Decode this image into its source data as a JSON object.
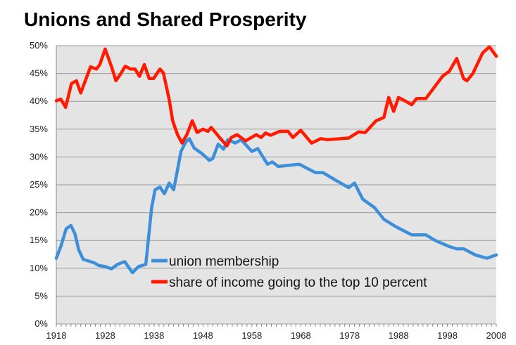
{
  "chart_data": {
    "type": "line",
    "title": "Unions and Shared Prosperity",
    "xlabel": "",
    "ylabel": "",
    "xlim": [
      1918,
      2008
    ],
    "ylim": [
      0,
      50
    ],
    "x_ticks": [
      "1918",
      "1928",
      "1938",
      "1948",
      "1958",
      "1968",
      "1978",
      "1988",
      "1998",
      "2008"
    ],
    "y_ticks": [
      "0%",
      "5%",
      "10%",
      "15%",
      "20%",
      "25%",
      "30%",
      "35%",
      "40%",
      "45%",
      "50%"
    ],
    "grid": true,
    "legend": "bottom-center-inside",
    "series": [
      {
        "name": "union membership",
        "color": "#3d8fd9",
        "points": [
          [
            1918,
            11.8
          ],
          [
            1919,
            14.1
          ],
          [
            1920,
            17.1
          ],
          [
            1921,
            17.7
          ],
          [
            1921.8,
            16.2
          ],
          [
            1922.6,
            13.3
          ],
          [
            1923.5,
            11.6
          ],
          [
            1925.7,
            11.0
          ],
          [
            1926.7,
            10.5
          ],
          [
            1928,
            10.3
          ],
          [
            1929.3,
            9.9
          ],
          [
            1930.5,
            10.7
          ],
          [
            1932,
            11.2
          ],
          [
            1932.7,
            10.3
          ],
          [
            1933.6,
            9.2
          ],
          [
            1934.8,
            10.3
          ],
          [
            1936.3,
            10.7
          ],
          [
            1936.7,
            14.1
          ],
          [
            1937.5,
            20.9
          ],
          [
            1938.2,
            24.1
          ],
          [
            1939.2,
            24.6
          ],
          [
            1940.1,
            23.4
          ],
          [
            1941.1,
            25.3
          ],
          [
            1942,
            24.1
          ],
          [
            1942.8,
            27.7
          ],
          [
            1943.5,
            31.0
          ],
          [
            1944.5,
            32.7
          ],
          [
            1945.2,
            33.3
          ],
          [
            1946.2,
            31.6
          ],
          [
            1947.8,
            30.6
          ],
          [
            1949.3,
            29.4
          ],
          [
            1950,
            29.7
          ],
          [
            1951.1,
            32.3
          ],
          [
            1952.2,
            31.4
          ],
          [
            1953.1,
            33.1
          ],
          [
            1954.6,
            32.5
          ],
          [
            1955.8,
            33.1
          ],
          [
            1958,
            31.0
          ],
          [
            1959.2,
            31.5
          ],
          [
            1961.2,
            28.7
          ],
          [
            1962.2,
            29.1
          ],
          [
            1963.4,
            28.3
          ],
          [
            1967.7,
            28.7
          ],
          [
            1971,
            27.2
          ],
          [
            1972.5,
            27.2
          ],
          [
            1975.4,
            25.7
          ],
          [
            1977.8,
            24.5
          ],
          [
            1979,
            25.3
          ],
          [
            1980.7,
            22.4
          ],
          [
            1983.1,
            20.9
          ],
          [
            1985,
            18.8
          ],
          [
            1987.4,
            17.5
          ],
          [
            1990.7,
            16.0
          ],
          [
            1993.6,
            16.0
          ],
          [
            1995.5,
            15.0
          ],
          [
            1998.4,
            13.9
          ],
          [
            1999.9,
            13.5
          ],
          [
            2001.3,
            13.5
          ],
          [
            2003.7,
            12.4
          ],
          [
            2006.1,
            11.8
          ],
          [
            2008,
            12.4
          ]
        ]
      },
      {
        "name": "share of income going to the top 10 percent",
        "color": "#ff1a00",
        "points": [
          [
            1918,
            40.1
          ],
          [
            1918.9,
            40.4
          ],
          [
            1919.9,
            38.9
          ],
          [
            1921.1,
            43.2
          ],
          [
            1922.1,
            43.7
          ],
          [
            1923,
            41.5
          ],
          [
            1925,
            46.2
          ],
          [
            1926.2,
            45.8
          ],
          [
            1926.9,
            46.6
          ],
          [
            1928,
            49.4
          ],
          [
            1929.3,
            46.2
          ],
          [
            1930.2,
            43.7
          ],
          [
            1931.2,
            45.0
          ],
          [
            1932.1,
            46.3
          ],
          [
            1933.2,
            45.8
          ],
          [
            1934.1,
            45.8
          ],
          [
            1935,
            44.5
          ],
          [
            1936,
            46.6
          ],
          [
            1937,
            44.1
          ],
          [
            1937.9,
            44.1
          ],
          [
            1939.2,
            45.8
          ],
          [
            1939.9,
            45.1
          ],
          [
            1941.1,
            40.3
          ],
          [
            1941.8,
            36.5
          ],
          [
            1942.8,
            34.0
          ],
          [
            1943.7,
            32.5
          ],
          [
            1944.7,
            34.0
          ],
          [
            1945.8,
            36.5
          ],
          [
            1946.8,
            34.4
          ],
          [
            1948,
            35.0
          ],
          [
            1949,
            34.6
          ],
          [
            1949.7,
            35.3
          ],
          [
            1951.4,
            33.5
          ],
          [
            1952.9,
            32.0
          ],
          [
            1953.8,
            33.5
          ],
          [
            1955,
            34.0
          ],
          [
            1956.7,
            32.9
          ],
          [
            1958.9,
            34.0
          ],
          [
            1959.9,
            33.5
          ],
          [
            1960.8,
            34.3
          ],
          [
            1961.8,
            33.9
          ],
          [
            1963.7,
            34.6
          ],
          [
            1965.4,
            34.6
          ],
          [
            1966.4,
            33.5
          ],
          [
            1968,
            34.8
          ],
          [
            1970.2,
            32.5
          ],
          [
            1972.1,
            33.3
          ],
          [
            1973.5,
            33.1
          ],
          [
            1977.8,
            33.4
          ],
          [
            1979.8,
            34.5
          ],
          [
            1981.2,
            34.4
          ],
          [
            1983.4,
            36.5
          ],
          [
            1985,
            37.1
          ],
          [
            1986,
            40.7
          ],
          [
            1987,
            38.2
          ],
          [
            1988,
            40.7
          ],
          [
            1989.3,
            40.1
          ],
          [
            1990.7,
            39.4
          ],
          [
            1991.7,
            40.5
          ],
          [
            1993.6,
            40.5
          ],
          [
            1997,
            44.5
          ],
          [
            1998.4,
            45.4
          ],
          [
            1999.9,
            47.7
          ],
          [
            2001.3,
            44.1
          ],
          [
            2002,
            43.7
          ],
          [
            2003.2,
            45.0
          ],
          [
            2005.2,
            48.7
          ],
          [
            2006.6,
            49.8
          ],
          [
            2008,
            48.1
          ]
        ]
      }
    ]
  }
}
